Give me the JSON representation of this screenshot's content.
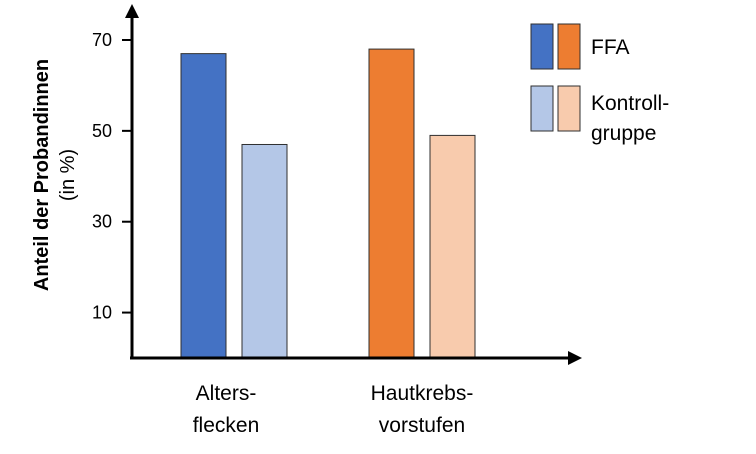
{
  "chart_data": {
    "type": "bar",
    "categories": [
      [
        "Alters-",
        "flecken"
      ],
      [
        "Hautkrebs-",
        "vorstufen"
      ]
    ],
    "series": [
      {
        "name": "FFA",
        "values": [
          67,
          68
        ],
        "colors": [
          "#4472c4",
          "#ed7d31"
        ]
      },
      {
        "name": "Kontroll-gruppe",
        "values": [
          47,
          49
        ],
        "colors": [
          "#b4c7e7",
          "#f8cbad"
        ]
      }
    ],
    "ylabel": "Anteil der Probandinnen",
    "ylabel_unit": "(in %)",
    "yticks": [
      10,
      30,
      50,
      70
    ],
    "ylim": [
      0,
      78
    ],
    "grid": false,
    "legend": {
      "placement": "top-right",
      "entries": [
        {
          "label_lines": [
            "FFA"
          ],
          "colors": [
            "#4472c4",
            "#ed7d31"
          ]
        },
        {
          "label_lines": [
            "Kontroll-",
            "gruppe"
          ],
          "colors": [
            "#b4c7e7",
            "#f8cbad"
          ]
        }
      ]
    }
  }
}
